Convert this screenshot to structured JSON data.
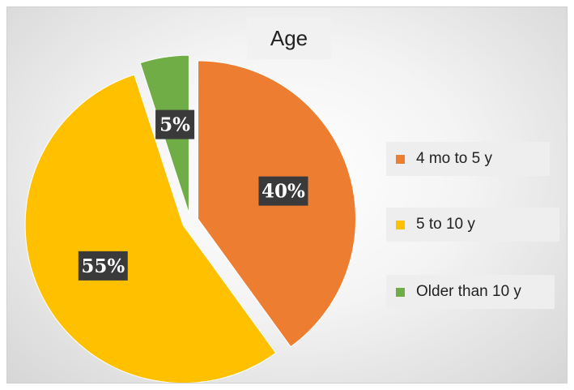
{
  "chart_data": {
    "type": "pie",
    "title": "Age",
    "slices": [
      {
        "label": "4 mo to 5 y",
        "value": 40,
        "display": "40%",
        "color": "#ed7d31"
      },
      {
        "label": "5 to 10 y",
        "value": 55,
        "display": "55%",
        "color": "#ffc000"
      },
      {
        "label": "Older than 10 y",
        "value": 5,
        "display": "5%",
        "color": "#70ad47"
      }
    ],
    "legend_position": "right",
    "data_label_style": "dark boxes with white bold text",
    "exploded": true
  }
}
